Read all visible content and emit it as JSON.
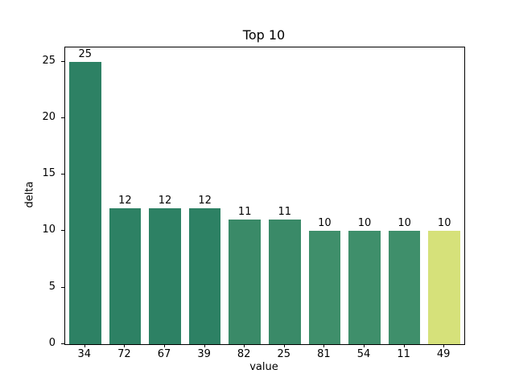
{
  "figure": {
    "background": "#ffffff",
    "axis_color": "#000000",
    "text_color": "#000000"
  },
  "chart_data": {
    "type": "bar",
    "title": "Top 10",
    "xlabel": "value",
    "ylabel": "delta",
    "categories": [
      "34",
      "72",
      "67",
      "39",
      "82",
      "25",
      "81",
      "54",
      "11",
      "49"
    ],
    "values": [
      25,
      12,
      12,
      12,
      11,
      11,
      10,
      10,
      10,
      10
    ],
    "bar_labels": [
      "25",
      "12",
      "12",
      "12",
      "11",
      "11",
      "10",
      "10",
      "10",
      "10"
    ],
    "bar_colors": [
      "#2d8164",
      "#2d8164",
      "#2d8164",
      "#2d8164",
      "#3a8a68",
      "#3a8a68",
      "#3f8f6b",
      "#3f8f6b",
      "#3f8f6b",
      "#d6e17a"
    ],
    "yticks": [
      0,
      5,
      10,
      15,
      20,
      25
    ],
    "ylim": [
      0,
      26.25
    ],
    "grid": false,
    "legend": null
  }
}
